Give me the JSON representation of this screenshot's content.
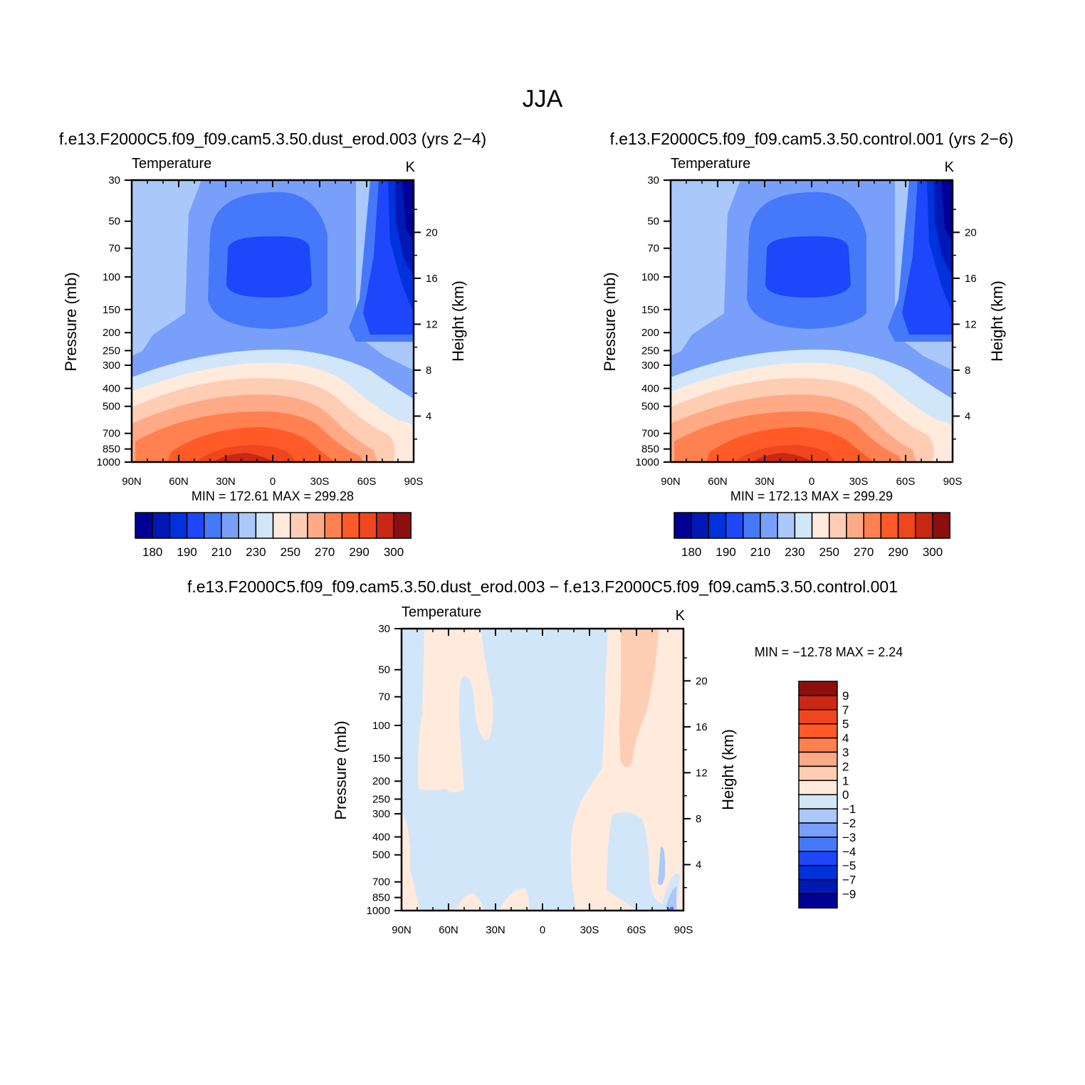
{
  "page_title": "JJA",
  "colors": {
    "t_levels": [
      "#000096",
      "#0019b4",
      "#0032dc",
      "#1e46fa",
      "#4678fa",
      "#78a0fa",
      "#aac8fa",
      "#d2e6fa",
      "#ffeadc",
      "#ffcdb4",
      "#ffaa87",
      "#ff8050",
      "#ff5a28",
      "#f0461e",
      "#c82814",
      "#8c0f0f"
    ],
    "d_levels": [
      "#000096",
      "#0019b4",
      "#0032dc",
      "#1e46fa",
      "#4678fa",
      "#78a0fa",
      "#aac8fa",
      "#d2e6fa",
      "#ffeadc",
      "#ffcdb4",
      "#ffaa87",
      "#ff8050",
      "#ff5a28",
      "#f0461e",
      "#c82814",
      "#8c0f0f"
    ]
  },
  "axes": {
    "lat_ticks": [
      "90N",
      "60N",
      "30N",
      "0",
      "30S",
      "60S",
      "90S"
    ],
    "pressure_ticks": [
      "30",
      "50",
      "70",
      "100",
      "150",
      "200",
      "250",
      "300",
      "400",
      "500",
      "700",
      "850",
      "1000"
    ],
    "height_ticks": [
      "20",
      "16",
      "12",
      "8",
      "4"
    ],
    "ylabel_left": "Pressure (mb)",
    "ylabel_right": "Height (km)"
  },
  "t_colorbar_labels": [
    "180",
    "190",
    "210",
    "230",
    "250",
    "270",
    "290",
    "300"
  ],
  "d_colorbar_labels": [
    "9",
    "7",
    "5",
    "4",
    "3",
    "2",
    "1",
    "0",
    "−1",
    "−2",
    "−3",
    "−4",
    "−5",
    "−7",
    "−9"
  ],
  "chart_data": [
    {
      "type": "heatmap",
      "title": "f.e13.F2000C5.f09_f09.cam5.3.50.dust_erod.003 (yrs 2−4)",
      "subtitle": "Temperature",
      "units": "K",
      "stats": "MIN =  172.61   MAX =  299.28",
      "x": [
        "90N",
        "60N",
        "30N",
        "0",
        "30S",
        "60S",
        "90S"
      ],
      "y": [
        "30",
        "50",
        "70",
        "100",
        "150",
        "200",
        "250",
        "300",
        "400",
        "500",
        "700",
        "850",
        "1000"
      ],
      "min": 172.61,
      "max": 299.28
    },
    {
      "type": "heatmap",
      "title": "f.e13.F2000C5.f09_f09.cam5.3.50.control.001 (yrs 2−6)",
      "subtitle": "Temperature",
      "units": "K",
      "stats": "MIN =  172.13   MAX =  299.29",
      "x": [
        "90N",
        "60N",
        "30N",
        "0",
        "30S",
        "60S",
        "90S"
      ],
      "y": [
        "30",
        "50",
        "70",
        "100",
        "150",
        "200",
        "250",
        "300",
        "400",
        "500",
        "700",
        "850",
        "1000"
      ],
      "min": 172.13,
      "max": 299.29
    },
    {
      "type": "heatmap",
      "title": "f.e13.F2000C5.f09_f09.cam5.3.50.dust_erod.003 − f.e13.F2000C5.f09_f09.cam5.3.50.control.001",
      "subtitle": "Temperature",
      "units": "K",
      "stats": "MIN = −12.78   MAX =     2.24",
      "x": [
        "90N",
        "60N",
        "30N",
        "0",
        "30S",
        "60S",
        "90S"
      ],
      "y": [
        "30",
        "50",
        "70",
        "100",
        "150",
        "200",
        "250",
        "300",
        "400",
        "500",
        "700",
        "850",
        "1000"
      ],
      "min": -12.78,
      "max": 2.24
    }
  ]
}
